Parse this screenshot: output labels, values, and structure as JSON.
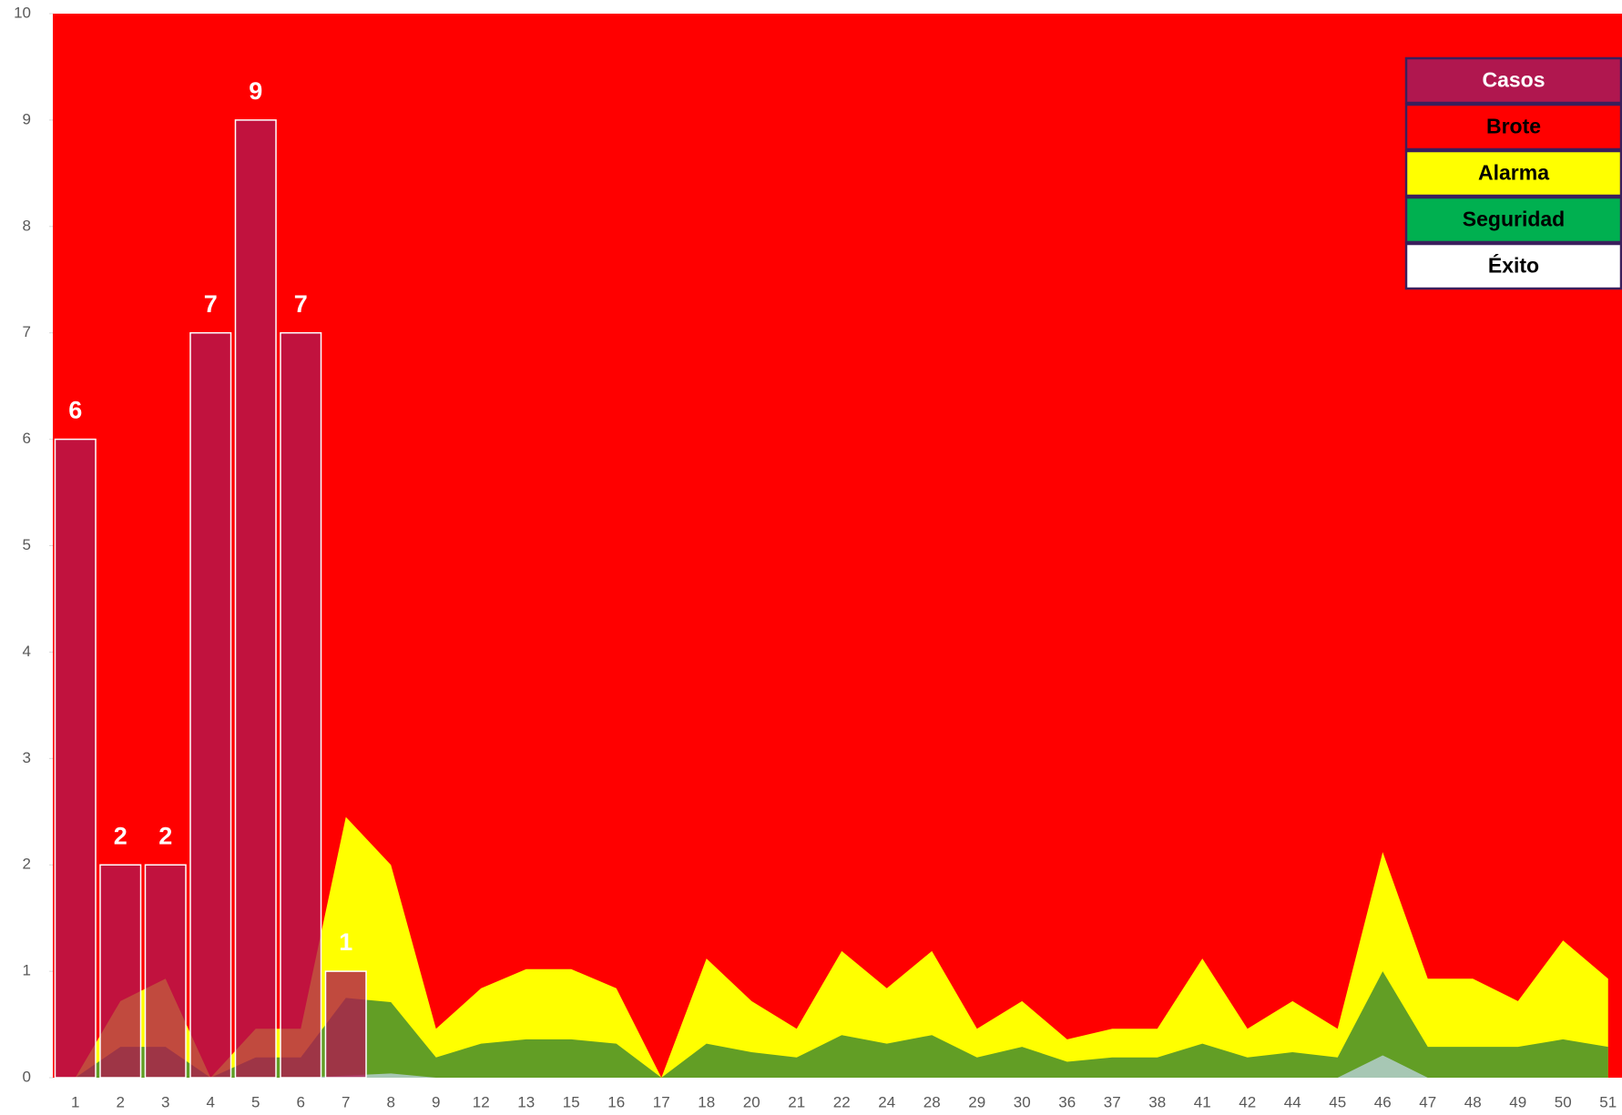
{
  "chart_data": {
    "type": "bar-area",
    "categories": [
      "1",
      "2",
      "3",
      "4",
      "5",
      "6",
      "7",
      "8",
      "9",
      "12",
      "13",
      "15",
      "16",
      "17",
      "18",
      "20",
      "21",
      "22",
      "24",
      "28",
      "29",
      "30",
      "36",
      "37",
      "38",
      "41",
      "42",
      "44",
      "45",
      "46",
      "47",
      "48",
      "49",
      "50",
      "51"
    ],
    "series": [
      {
        "name": "Casos",
        "type": "bar",
        "color": "#b0174f",
        "values": [
          6,
          2,
          2,
          7,
          9,
          7,
          1,
          null,
          null,
          null,
          null,
          null,
          null,
          null,
          null,
          null,
          null,
          null,
          null,
          null,
          null,
          null,
          null,
          null,
          null,
          null,
          null,
          null,
          null,
          null,
          null,
          null,
          null,
          null,
          null
        ]
      },
      {
        "name": "Brote",
        "type": "area",
        "color": "#ff0000",
        "values": [
          10,
          10,
          10,
          10,
          10,
          10,
          10,
          10,
          10,
          10,
          10,
          10,
          10,
          10,
          10,
          10,
          10,
          10,
          10,
          10,
          10,
          10,
          10,
          10,
          10,
          10,
          10,
          10,
          10,
          10,
          10,
          10,
          10,
          10,
          10
        ]
      },
      {
        "name": "Alarma",
        "type": "area",
        "color": "#ffff00",
        "values": [
          0,
          0.72,
          0.93,
          0,
          0.46,
          0.46,
          2.45,
          2.0,
          0.46,
          0.84,
          1.02,
          1.02,
          0.84,
          0,
          1.12,
          0.72,
          0.46,
          1.19,
          0.84,
          1.19,
          0.46,
          0.72,
          0.36,
          0.46,
          0.46,
          1.12,
          0.46,
          0.72,
          0.46,
          2.12,
          0.93,
          0.93,
          0.72,
          1.29,
          0.93
        ]
      },
      {
        "name": "Seguridad",
        "type": "area",
        "color": "#00b050",
        "values": [
          0,
          0.29,
          0.29,
          0,
          0.19,
          0.19,
          0.75,
          0.71,
          0.19,
          0.32,
          0.36,
          0.36,
          0.32,
          0,
          0.32,
          0.24,
          0.19,
          0.4,
          0.32,
          0.4,
          0.19,
          0.29,
          0.15,
          0.19,
          0.19,
          0.32,
          0.19,
          0.24,
          0.19,
          1.0,
          0.29,
          0.29,
          0.29,
          0.36,
          0.29
        ]
      },
      {
        "name": "Éxito",
        "type": "area",
        "color": "#ffffff",
        "values": [
          0,
          0,
          0,
          0,
          0,
          0,
          0.02,
          0.04,
          0,
          0,
          0,
          0,
          0,
          0,
          0,
          0,
          0,
          0,
          0,
          0,
          0,
          0,
          0,
          0,
          0,
          0,
          0,
          0,
          0,
          0.21,
          0,
          0,
          0,
          0,
          0
        ]
      }
    ],
    "ylim": [
      0,
      10
    ],
    "yticks": [
      0,
      1,
      2,
      3,
      4,
      5,
      6,
      7,
      8,
      9,
      10
    ],
    "legend": "upper right"
  }
}
